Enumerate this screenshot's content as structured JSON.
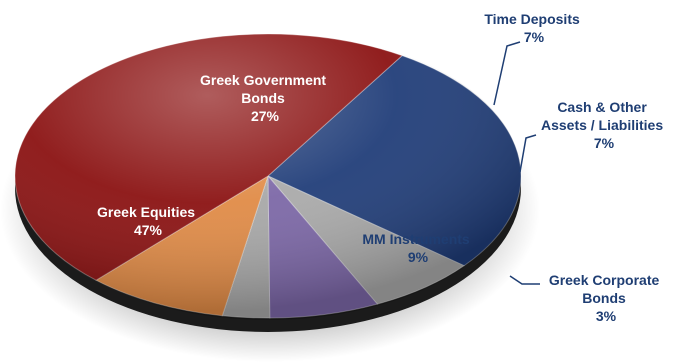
{
  "chart_data": {
    "type": "pie",
    "slices": [
      {
        "name": "Greek Government Bonds",
        "value": 27,
        "label_lines": [
          "Greek Government",
          "Bonds"
        ],
        "pct_text": "27%",
        "color": "#1f3c78"
      },
      {
        "name": "Time Deposits",
        "value": 7,
        "label_lines": [
          "Time Deposits"
        ],
        "pct_text": "7%",
        "color": "#a9a9a9"
      },
      {
        "name": "Cash & Other Assets / Liabilities",
        "value": 7,
        "label_lines": [
          "Cash & Other",
          "Assets / Liabilities"
        ],
        "pct_text": "7%",
        "color": "#7b66a6"
      },
      {
        "name": "Greek Corporate Bonds",
        "value": 3,
        "label_lines": [
          "Greek Corporate",
          "Bonds"
        ],
        "pct_text": "3%",
        "color": "#a7a7a7"
      },
      {
        "name": "MM Instruments",
        "value": 9,
        "label_lines": [
          "MM Instruments"
        ],
        "pct_text": "9%",
        "color": "#e08a45"
      },
      {
        "name": "Greek Equities",
        "value": 47,
        "label_lines": [
          "Greek Equities"
        ],
        "pct_text": "47%",
        "color": "#8a1010"
      }
    ]
  }
}
